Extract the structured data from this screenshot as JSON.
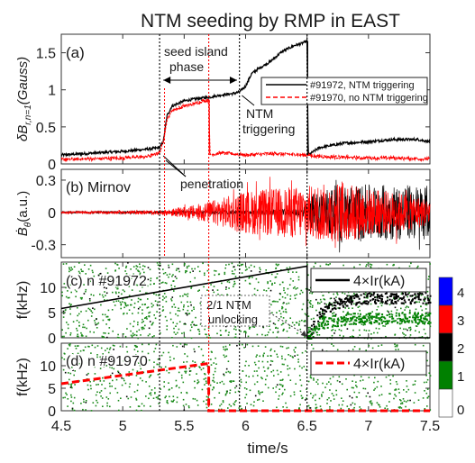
{
  "figure": {
    "title": "NTM seeding by RMP in EAST",
    "xlabel": "time/s"
  },
  "chart_data": [
    {
      "panel": "(a)",
      "type": "line",
      "ylabel": "δB_{r,n=1}(Gauss)",
      "ylabel_main": "δB",
      "ylabel_sub": "r,n=1",
      "ylabel_unit": "(Gauss)",
      "xlim": [
        4.5,
        7.5
      ],
      "ylim": [
        0,
        1.75
      ],
      "yticks": [
        "0",
        "0.5",
        "1",
        "1.5"
      ],
      "ytick_values": [
        0,
        0.5,
        1,
        1.5
      ],
      "grid": false,
      "legend_position": "right",
      "series": [
        {
          "name": "#91972, NTM triggering",
          "color": "#000000",
          "style": "solid",
          "x": [
            4.5,
            4.8,
            5.0,
            5.2,
            5.3,
            5.33,
            5.36,
            5.4,
            5.5,
            5.6,
            5.7,
            5.8,
            5.9,
            5.95,
            6.0,
            6.05,
            6.1,
            6.2,
            6.3,
            6.4,
            6.45,
            6.5,
            6.51,
            6.6,
            6.8,
            7.0,
            7.2,
            7.4,
            7.5
          ],
          "y": [
            0.12,
            0.15,
            0.17,
            0.2,
            0.22,
            0.3,
            0.65,
            0.78,
            0.85,
            0.88,
            0.9,
            0.93,
            0.95,
            0.97,
            1.05,
            1.22,
            1.28,
            1.38,
            1.52,
            1.6,
            1.62,
            1.66,
            0.12,
            0.22,
            0.28,
            0.3,
            0.33,
            0.33,
            0.3
          ]
        },
        {
          "name": "#91970, no NTM triggering",
          "color": "#ff0000",
          "style": "dashed",
          "x": [
            4.5,
            4.8,
            5.0,
            5.2,
            5.3,
            5.33,
            5.36,
            5.4,
            5.5,
            5.6,
            5.65,
            5.7,
            5.71,
            5.8,
            6.0,
            6.2,
            6.4,
            6.6,
            6.8,
            7.0,
            7.2,
            7.4,
            7.5
          ],
          "y": [
            0.06,
            0.07,
            0.08,
            0.1,
            0.15,
            0.3,
            0.6,
            0.72,
            0.78,
            0.82,
            0.85,
            0.86,
            0.12,
            0.15,
            0.12,
            0.14,
            0.13,
            0.1,
            0.09,
            0.08,
            0.08,
            0.07,
            0.07
          ]
        }
      ],
      "annotations": [
        "seed island",
        "phase",
        "NTM",
        "triggering",
        "penetration"
      ]
    },
    {
      "panel": "(b)",
      "type": "line",
      "label": "Mirnov",
      "ylabel": "Ḃθ(a.u.)",
      "ylabel_main": "Ḃ",
      "ylabel_sub": "θ",
      "ylabel_unit": "(a.u.)",
      "xlim": [
        4.5,
        7.5
      ],
      "ylim": [
        -0.42,
        0.4
      ],
      "yticks": [
        "0.3",
        "0",
        "-0.3"
      ],
      "ytick_values": [
        0.3,
        0,
        -0.3
      ],
      "grid": false,
      "series": [
        {
          "name": "#91972",
          "color": "#000000",
          "x": [
            4.5,
            5.0,
            5.5,
            6.0,
            6.4,
            6.5,
            6.55,
            6.7,
            7.0,
            7.3,
            7.5
          ],
          "amplitude": [
            0.01,
            0.012,
            0.015,
            0.02,
            0.03,
            0.08,
            0.18,
            0.25,
            0.26,
            0.26,
            0.25
          ]
        },
        {
          "name": "#91970",
          "color": "#ff0000",
          "x": [
            4.5,
            5.0,
            5.3,
            5.5,
            5.7,
            6.0,
            6.5,
            6.8,
            7.0,
            7.3,
            7.5
          ],
          "amplitude": [
            0.01,
            0.015,
            0.02,
            0.05,
            0.1,
            0.2,
            0.25,
            0.28,
            0.22,
            0.18,
            0.12
          ]
        }
      ]
    },
    {
      "panel": "(c)",
      "type": "heatmap",
      "label": "n #91972",
      "ylabel": "f(kHz)",
      "xlim": [
        4.5,
        7.5
      ],
      "ylim": [
        0,
        15
      ],
      "yticks": [
        "0",
        "5",
        "10"
      ],
      "ytick_values": [
        0,
        5,
        10
      ],
      "overlay": {
        "name": "4×Ir(kA)",
        "color": "#000000",
        "style": "solid",
        "x": [
          4.5,
          6.5,
          6.5,
          7.5
        ],
        "y": [
          5.8,
          14.2,
          0,
          0
        ]
      },
      "mode_bands": [
        {
          "color": "#000000",
          "x": [
            6.5,
            6.6,
            6.8,
            7.0,
            7.5
          ],
          "y": [
            0,
            5,
            7.5,
            8,
            8
          ]
        },
        {
          "color": "#008000",
          "x": [
            6.5,
            6.6,
            6.8,
            7.0,
            7.5
          ],
          "y": [
            0,
            3,
            3.8,
            4,
            4
          ]
        }
      ],
      "annotation": [
        "2/1 NTM",
        "unlocking"
      ]
    },
    {
      "panel": "(d)",
      "type": "heatmap",
      "label": "n #91970",
      "ylabel": "f(kHz)",
      "xlim": [
        4.5,
        7.5
      ],
      "ylim": [
        0,
        15
      ],
      "yticks": [
        "0",
        "5",
        "10"
      ],
      "ytick_values": [
        0,
        5,
        10
      ],
      "overlay": {
        "name": "4×Ir(kA)",
        "color": "#ff0000",
        "style": "dashed",
        "x": [
          4.5,
          5.7,
          5.7,
          7.5
        ],
        "y": [
          6,
          10.5,
          0,
          0
        ]
      }
    }
  ],
  "shared_x": {
    "ticks": [
      "4.5",
      "5",
      "5.5",
      "6",
      "6.5",
      "7",
      "7.5"
    ],
    "tick_values": [
      4.5,
      5.0,
      5.5,
      6.0,
      6.5,
      7.0,
      7.5
    ],
    "vlines": [
      5.3,
      5.7,
      5.95,
      6.5
    ]
  },
  "colorbar": {
    "levels": [
      {
        "value": "4",
        "color": "#0000ff"
      },
      {
        "value": "3",
        "color": "#ff0000"
      },
      {
        "value": "2",
        "color": "#000000"
      },
      {
        "value": "1",
        "color": "#008000"
      },
      {
        "value": "0",
        "color": "#ffffff"
      }
    ]
  }
}
